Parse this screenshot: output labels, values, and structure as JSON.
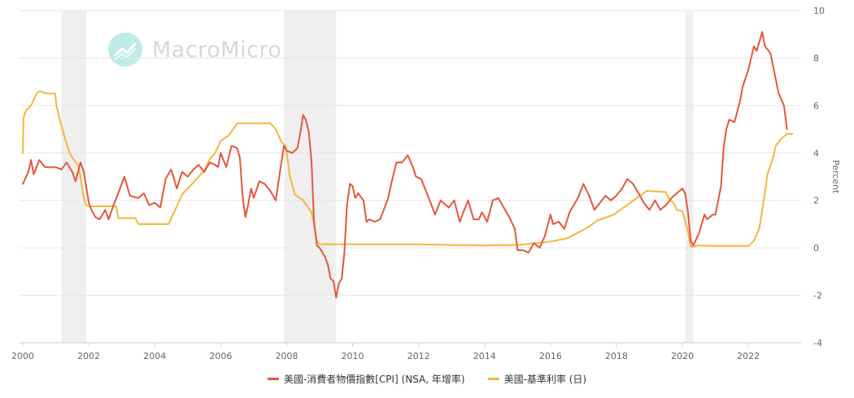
{
  "watermark": {
    "text": "MacroMicro",
    "icon": "macromicro-logo-icon"
  },
  "chart_data": {
    "type": "line",
    "title": "",
    "xlabel": "",
    "ylabel": "Percent",
    "xlim": [
      1999.9,
      2023.6
    ],
    "ylim": [
      -4,
      10
    ],
    "x_ticks": [
      2000,
      2002,
      2004,
      2006,
      2008,
      2010,
      2012,
      2014,
      2016,
      2018,
      2020,
      2022
    ],
    "y_ticks": [
      -4,
      -2,
      0,
      2,
      4,
      6,
      8,
      10
    ],
    "grid": "horizontal",
    "legend_position": "bottom",
    "recession_shading": [
      {
        "start": 2001.17,
        "end": 2001.92
      },
      {
        "start": 2007.92,
        "end": 2009.5
      },
      {
        "start": 2020.08,
        "end": 2020.33
      }
    ],
    "series": [
      {
        "name": "美國-消費者物價指數[CPI] (NSA, 年增率)",
        "color": "#e4573b",
        "points": [
          [
            2000.0,
            2.7
          ],
          [
            2000.17,
            3.2
          ],
          [
            2000.25,
            3.7
          ],
          [
            2000.33,
            3.1
          ],
          [
            2000.5,
            3.7
          ],
          [
            2000.67,
            3.4
          ],
          [
            2000.83,
            3.4
          ],
          [
            2001.0,
            3.4
          ],
          [
            2001.17,
            3.3
          ],
          [
            2001.33,
            3.6
          ],
          [
            2001.5,
            3.2
          ],
          [
            2001.6,
            2.8
          ],
          [
            2001.75,
            3.6
          ],
          [
            2001.85,
            3.2
          ],
          [
            2001.92,
            2.6
          ],
          [
            2002.0,
            1.9
          ],
          [
            2002.08,
            1.6
          ],
          [
            2002.2,
            1.3
          ],
          [
            2002.33,
            1.2
          ],
          [
            2002.5,
            1.6
          ],
          [
            2002.6,
            1.2
          ],
          [
            2002.75,
            1.8
          ],
          [
            2002.92,
            2.4
          ],
          [
            2003.08,
            3.0
          ],
          [
            2003.25,
            2.2
          ],
          [
            2003.5,
            2.1
          ],
          [
            2003.67,
            2.3
          ],
          [
            2003.83,
            1.8
          ],
          [
            2004.0,
            1.9
          ],
          [
            2004.17,
            1.7
          ],
          [
            2004.33,
            2.9
          ],
          [
            2004.5,
            3.3
          ],
          [
            2004.67,
            2.5
          ],
          [
            2004.83,
            3.2
          ],
          [
            2005.0,
            3.0
          ],
          [
            2005.17,
            3.3
          ],
          [
            2005.33,
            3.5
          ],
          [
            2005.5,
            3.2
          ],
          [
            2005.67,
            3.6
          ],
          [
            2005.83,
            3.5
          ],
          [
            2005.92,
            3.4
          ],
          [
            2006.0,
            4.0
          ],
          [
            2006.17,
            3.4
          ],
          [
            2006.33,
            4.3
          ],
          [
            2006.5,
            4.2
          ],
          [
            2006.58,
            3.8
          ],
          [
            2006.67,
            2.1
          ],
          [
            2006.75,
            1.3
          ],
          [
            2006.83,
            1.8
          ],
          [
            2006.92,
            2.5
          ],
          [
            2007.0,
            2.1
          ],
          [
            2007.17,
            2.8
          ],
          [
            2007.33,
            2.7
          ],
          [
            2007.5,
            2.4
          ],
          [
            2007.67,
            2.0
          ],
          [
            2007.83,
            3.5
          ],
          [
            2007.92,
            4.3
          ],
          [
            2008.0,
            4.1
          ],
          [
            2008.17,
            4.0
          ],
          [
            2008.33,
            4.2
          ],
          [
            2008.42,
            4.9
          ],
          [
            2008.5,
            5.6
          ],
          [
            2008.58,
            5.4
          ],
          [
            2008.67,
            4.9
          ],
          [
            2008.75,
            3.7
          ],
          [
            2008.83,
            1.1
          ],
          [
            2008.92,
            0.1
          ],
          [
            2009.0,
            0.0
          ],
          [
            2009.17,
            -0.4
          ],
          [
            2009.25,
            -0.7
          ],
          [
            2009.33,
            -1.3
          ],
          [
            2009.42,
            -1.4
          ],
          [
            2009.5,
            -2.1
          ],
          [
            2009.58,
            -1.5
          ],
          [
            2009.67,
            -1.3
          ],
          [
            2009.75,
            -0.2
          ],
          [
            2009.83,
            1.8
          ],
          [
            2009.92,
            2.7
          ],
          [
            2010.0,
            2.6
          ],
          [
            2010.08,
            2.1
          ],
          [
            2010.17,
            2.3
          ],
          [
            2010.33,
            2.0
          ],
          [
            2010.42,
            1.1
          ],
          [
            2010.5,
            1.2
          ],
          [
            2010.67,
            1.1
          ],
          [
            2010.83,
            1.2
          ],
          [
            2010.92,
            1.5
          ],
          [
            2011.08,
            2.1
          ],
          [
            2011.17,
            2.7
          ],
          [
            2011.33,
            3.6
          ],
          [
            2011.5,
            3.6
          ],
          [
            2011.67,
            3.9
          ],
          [
            2011.83,
            3.4
          ],
          [
            2011.92,
            3.0
          ],
          [
            2012.08,
            2.9
          ],
          [
            2012.25,
            2.3
          ],
          [
            2012.42,
            1.7
          ],
          [
            2012.5,
            1.4
          ],
          [
            2012.67,
            2.0
          ],
          [
            2012.83,
            1.8
          ],
          [
            2012.92,
            1.7
          ],
          [
            2013.08,
            2.0
          ],
          [
            2013.25,
            1.1
          ],
          [
            2013.33,
            1.4
          ],
          [
            2013.5,
            2.0
          ],
          [
            2013.67,
            1.2
          ],
          [
            2013.83,
            1.2
          ],
          [
            2013.92,
            1.5
          ],
          [
            2014.08,
            1.1
          ],
          [
            2014.25,
            2.0
          ],
          [
            2014.42,
            2.1
          ],
          [
            2014.58,
            1.7
          ],
          [
            2014.75,
            1.3
          ],
          [
            2014.92,
            0.8
          ],
          [
            2015.0,
            -0.1
          ],
          [
            2015.17,
            -0.1
          ],
          [
            2015.33,
            -0.2
          ],
          [
            2015.5,
            0.2
          ],
          [
            2015.67,
            0.0
          ],
          [
            2015.83,
            0.5
          ],
          [
            2016.0,
            1.4
          ],
          [
            2016.08,
            1.0
          ],
          [
            2016.25,
            1.1
          ],
          [
            2016.42,
            0.8
          ],
          [
            2016.58,
            1.5
          ],
          [
            2016.83,
            2.1
          ],
          [
            2017.0,
            2.7
          ],
          [
            2017.17,
            2.2
          ],
          [
            2017.33,
            1.6
          ],
          [
            2017.5,
            1.9
          ],
          [
            2017.67,
            2.2
          ],
          [
            2017.83,
            2.0
          ],
          [
            2018.0,
            2.2
          ],
          [
            2018.17,
            2.5
          ],
          [
            2018.33,
            2.9
          ],
          [
            2018.5,
            2.7
          ],
          [
            2018.67,
            2.3
          ],
          [
            2018.83,
            1.9
          ],
          [
            2019.0,
            1.6
          ],
          [
            2019.17,
            2.0
          ],
          [
            2019.33,
            1.6
          ],
          [
            2019.5,
            1.8
          ],
          [
            2019.67,
            2.1
          ],
          [
            2019.83,
            2.3
          ],
          [
            2020.0,
            2.5
          ],
          [
            2020.08,
            2.3
          ],
          [
            2020.17,
            1.5
          ],
          [
            2020.25,
            0.3
          ],
          [
            2020.33,
            0.1
          ],
          [
            2020.5,
            0.6
          ],
          [
            2020.67,
            1.4
          ],
          [
            2020.75,
            1.2
          ],
          [
            2020.92,
            1.4
          ],
          [
            2021.0,
            1.4
          ],
          [
            2021.17,
            2.6
          ],
          [
            2021.25,
            4.2
          ],
          [
            2021.33,
            5.0
          ],
          [
            2021.42,
            5.4
          ],
          [
            2021.58,
            5.3
          ],
          [
            2021.75,
            6.2
          ],
          [
            2021.83,
            6.8
          ],
          [
            2022.0,
            7.5
          ],
          [
            2022.17,
            8.5
          ],
          [
            2022.25,
            8.3
          ],
          [
            2022.42,
            9.1
          ],
          [
            2022.5,
            8.5
          ],
          [
            2022.67,
            8.2
          ],
          [
            2022.83,
            7.1
          ],
          [
            2022.92,
            6.5
          ],
          [
            2023.08,
            6.0
          ],
          [
            2023.17,
            5.0
          ]
        ]
      },
      {
        "name": "美國-基準利率 (日)",
        "color": "#f2b73a",
        "points": [
          [
            2000.0,
            4.0
          ],
          [
            2000.02,
            5.5
          ],
          [
            2000.1,
            5.8
          ],
          [
            2000.25,
            6.0
          ],
          [
            2000.42,
            6.5
          ],
          [
            2000.5,
            6.6
          ],
          [
            2000.75,
            6.5
          ],
          [
            2000.98,
            6.5
          ],
          [
            2001.02,
            6.0
          ],
          [
            2001.1,
            5.5
          ],
          [
            2001.2,
            5.0
          ],
          [
            2001.3,
            4.5
          ],
          [
            2001.42,
            4.0
          ],
          [
            2001.5,
            3.8
          ],
          [
            2001.67,
            3.5
          ],
          [
            2001.75,
            3.0
          ],
          [
            2001.83,
            2.2
          ],
          [
            2001.92,
            1.8
          ],
          [
            2002.0,
            1.75
          ],
          [
            2002.5,
            1.75
          ],
          [
            2002.83,
            1.75
          ],
          [
            2002.9,
            1.25
          ],
          [
            2003.42,
            1.25
          ],
          [
            2003.5,
            1.0
          ],
          [
            2004.42,
            1.0
          ],
          [
            2004.5,
            1.25
          ],
          [
            2004.67,
            1.75
          ],
          [
            2004.83,
            2.25
          ],
          [
            2005.0,
            2.5
          ],
          [
            2005.17,
            2.75
          ],
          [
            2005.33,
            3.0
          ],
          [
            2005.5,
            3.25
          ],
          [
            2005.67,
            3.75
          ],
          [
            2005.83,
            4.0
          ],
          [
            2006.0,
            4.5
          ],
          [
            2006.25,
            4.75
          ],
          [
            2006.5,
            5.25
          ],
          [
            2007.0,
            5.25
          ],
          [
            2007.5,
            5.25
          ],
          [
            2007.67,
            5.0
          ],
          [
            2007.83,
            4.5
          ],
          [
            2007.98,
            4.25
          ],
          [
            2008.05,
            3.5
          ],
          [
            2008.1,
            3.0
          ],
          [
            2008.25,
            2.25
          ],
          [
            2008.5,
            2.0
          ],
          [
            2008.75,
            1.5
          ],
          [
            2008.83,
            1.0
          ],
          [
            2008.92,
            0.25
          ],
          [
            2009.0,
            0.15
          ],
          [
            2010.0,
            0.15
          ],
          [
            2011.0,
            0.15
          ],
          [
            2012.0,
            0.15
          ],
          [
            2013.0,
            0.12
          ],
          [
            2014.0,
            0.1
          ],
          [
            2015.0,
            0.12
          ],
          [
            2015.92,
            0.25
          ],
          [
            2016.5,
            0.4
          ],
          [
            2016.92,
            0.7
          ],
          [
            2017.17,
            0.9
          ],
          [
            2017.42,
            1.15
          ],
          [
            2017.92,
            1.4
          ],
          [
            2018.17,
            1.65
          ],
          [
            2018.42,
            1.9
          ],
          [
            2018.67,
            2.15
          ],
          [
            2018.92,
            2.4
          ],
          [
            2019.5,
            2.35
          ],
          [
            2019.58,
            2.1
          ],
          [
            2019.75,
            1.85
          ],
          [
            2019.83,
            1.6
          ],
          [
            2020.0,
            1.55
          ],
          [
            2020.17,
            0.7
          ],
          [
            2020.25,
            0.05
          ],
          [
            2020.5,
            0.1
          ],
          [
            2021.0,
            0.08
          ],
          [
            2022.0,
            0.08
          ],
          [
            2022.17,
            0.3
          ],
          [
            2022.33,
            0.8
          ],
          [
            2022.42,
            1.6
          ],
          [
            2022.5,
            2.3
          ],
          [
            2022.58,
            3.1
          ],
          [
            2022.75,
            3.8
          ],
          [
            2022.83,
            4.3
          ],
          [
            2023.0,
            4.6
          ],
          [
            2023.17,
            4.8
          ],
          [
            2023.33,
            4.8
          ]
        ]
      }
    ]
  },
  "legend": {
    "items": [
      {
        "label": "美國-消費者物價指數[CPI] (NSA, 年增率)",
        "color": "#e4573b"
      },
      {
        "label": "美國-基準利率 (日)",
        "color": "#f2b73a"
      }
    ]
  }
}
